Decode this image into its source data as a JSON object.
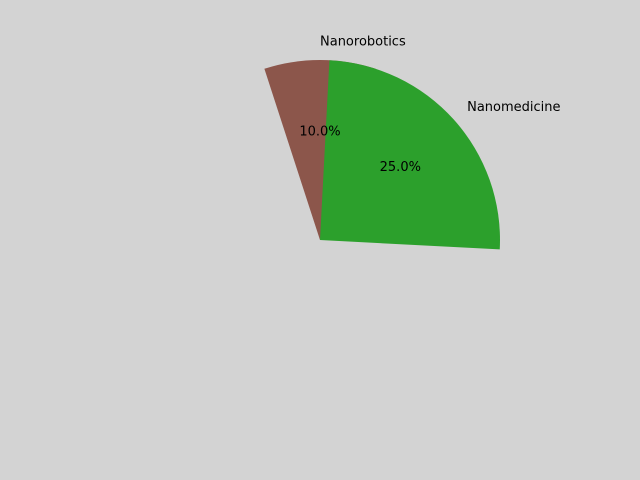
{
  "chart_data": {
    "type": "pie",
    "title": "",
    "slices": [
      {
        "label": "Nanorobotics",
        "value": 10.0,
        "pct_label": "10.0%",
        "color": "#8c564b"
      },
      {
        "label": "Nanomedicine",
        "value": 25.0,
        "pct_label": "25.0%",
        "color": "#2ca02c"
      }
    ],
    "background": "#d3d3d3"
  }
}
